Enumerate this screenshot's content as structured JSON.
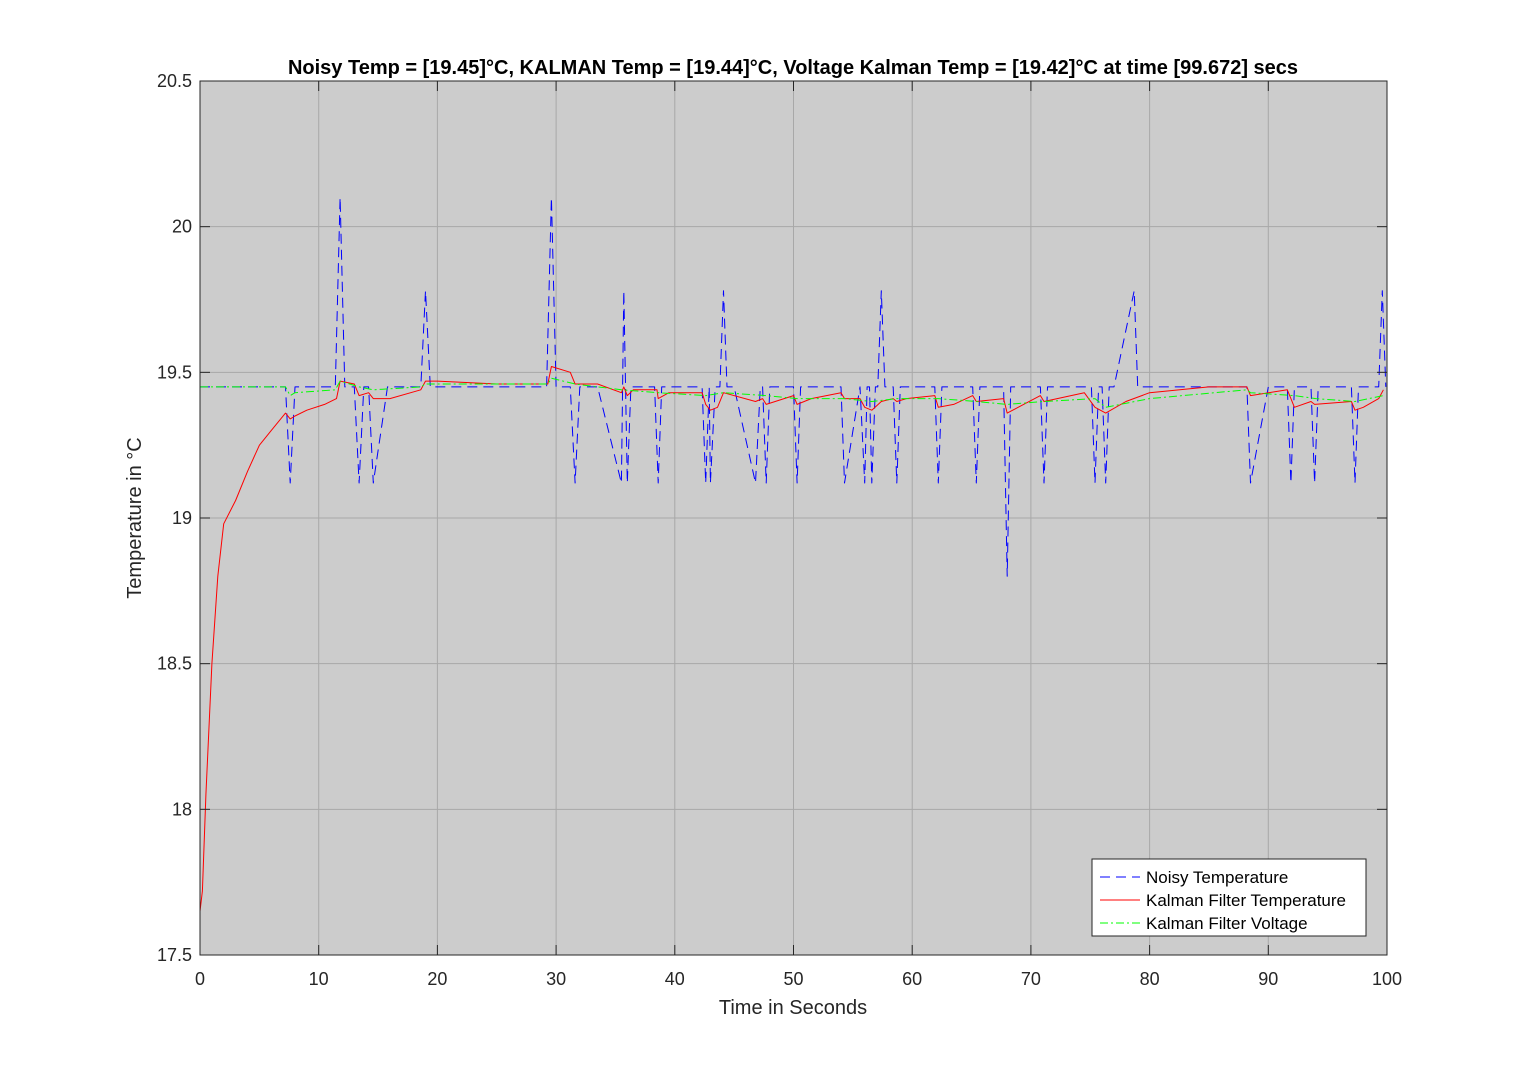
{
  "chart_data": {
    "type": "line",
    "title": "Noisy Temp = [19.45]°C, KALMAN Temp = [19.44]°C, Voltage Kalman Temp = [19.42]°C at time [99.672] secs",
    "xlabel": "Time in Seconds",
    "ylabel": "Temperature in °C",
    "xlim": [
      0,
      100
    ],
    "ylim": [
      17.5,
      20.5
    ],
    "xticks": [
      0,
      10,
      20,
      30,
      40,
      50,
      60,
      70,
      80,
      90,
      100
    ],
    "yticks": [
      17.5,
      18,
      18.5,
      19,
      19.5,
      20,
      20.5
    ],
    "xtick_labels": [
      "0",
      "10",
      "20",
      "30",
      "40",
      "50",
      "60",
      "70",
      "80",
      "90",
      "100"
    ],
    "ytick_labels": [
      "17.5",
      "18",
      "18.5",
      "19",
      "19.5",
      "20",
      "20.5"
    ],
    "grid": true,
    "legend_position": "bottom-right",
    "plot_background": "#cccccc",
    "series": [
      {
        "name": "Noisy Temperature",
        "color": "#0000ff",
        "style": "dashed",
        "points": [
          [
            0,
            19.45
          ],
          [
            7.2,
            19.45
          ],
          [
            7.6,
            19.12
          ],
          [
            8.0,
            19.45
          ],
          [
            11.4,
            19.45
          ],
          [
            11.8,
            20.1
          ],
          [
            12.2,
            19.45
          ],
          [
            13.0,
            19.45
          ],
          [
            13.4,
            19.12
          ],
          [
            13.8,
            19.45
          ],
          [
            14.2,
            19.45
          ],
          [
            14.6,
            19.12
          ],
          [
            15.8,
            19.45
          ],
          [
            18.6,
            19.45
          ],
          [
            19.0,
            19.78
          ],
          [
            19.4,
            19.45
          ],
          [
            29.2,
            19.45
          ],
          [
            29.6,
            20.1
          ],
          [
            30.0,
            19.45
          ],
          [
            31.2,
            19.45
          ],
          [
            31.6,
            19.12
          ],
          [
            32.0,
            19.45
          ],
          [
            33.5,
            19.45
          ],
          [
            35.5,
            19.12
          ],
          [
            35.7,
            19.78
          ],
          [
            36.0,
            19.12
          ],
          [
            36.3,
            19.45
          ],
          [
            38.3,
            19.45
          ],
          [
            38.6,
            19.12
          ],
          [
            38.9,
            19.45
          ],
          [
            42.3,
            19.45
          ],
          [
            42.6,
            19.12
          ],
          [
            42.9,
            19.45
          ],
          [
            43.0,
            19.12
          ],
          [
            43.4,
            19.45
          ],
          [
            43.8,
            19.45
          ],
          [
            44.1,
            19.78
          ],
          [
            44.4,
            19.45
          ],
          [
            45.0,
            19.45
          ],
          [
            46.8,
            19.12
          ],
          [
            47.2,
            19.45
          ],
          [
            47.4,
            19.45
          ],
          [
            47.7,
            19.12
          ],
          [
            48.0,
            19.45
          ],
          [
            50.0,
            19.45
          ],
          [
            50.3,
            19.12
          ],
          [
            50.6,
            19.45
          ],
          [
            54.0,
            19.45
          ],
          [
            54.3,
            19.12
          ],
          [
            55.6,
            19.45
          ],
          [
            56.0,
            19.12
          ],
          [
            56.2,
            19.45
          ],
          [
            56.4,
            19.45
          ],
          [
            56.6,
            19.12
          ],
          [
            56.9,
            19.45
          ],
          [
            57.1,
            19.45
          ],
          [
            57.4,
            19.78
          ],
          [
            57.7,
            19.45
          ],
          [
            58.4,
            19.45
          ],
          [
            58.7,
            19.12
          ],
          [
            59.0,
            19.45
          ],
          [
            61.9,
            19.45
          ],
          [
            62.2,
            19.12
          ],
          [
            62.5,
            19.45
          ],
          [
            65.1,
            19.45
          ],
          [
            65.4,
            19.12
          ],
          [
            65.7,
            19.45
          ],
          [
            67.7,
            19.45
          ],
          [
            68.0,
            18.8
          ],
          [
            68.3,
            19.45
          ],
          [
            70.8,
            19.45
          ],
          [
            71.1,
            19.12
          ],
          [
            71.4,
            19.45
          ],
          [
            75.1,
            19.45
          ],
          [
            75.4,
            19.12
          ],
          [
            75.7,
            19.45
          ],
          [
            76.0,
            19.45
          ],
          [
            76.3,
            19.12
          ],
          [
            76.6,
            19.45
          ],
          [
            77.0,
            19.45
          ],
          [
            78.7,
            19.78
          ],
          [
            79.0,
            19.45
          ],
          [
            88.2,
            19.45
          ],
          [
            88.5,
            19.12
          ],
          [
            90.0,
            19.45
          ],
          [
            91.6,
            19.45
          ],
          [
            91.9,
            19.12
          ],
          [
            92.2,
            19.45
          ],
          [
            93.6,
            19.45
          ],
          [
            93.9,
            19.12
          ],
          [
            94.2,
            19.45
          ],
          [
            97.0,
            19.45
          ],
          [
            97.3,
            19.12
          ],
          [
            97.6,
            19.45
          ],
          [
            99.3,
            19.45
          ],
          [
            99.6,
            19.78
          ],
          [
            99.9,
            19.45
          ]
        ]
      },
      {
        "name": "Kalman Filter Temperature",
        "color": "#ff0000",
        "style": "solid",
        "points": [
          [
            0,
            17.65
          ],
          [
            0.2,
            17.72
          ],
          [
            0.5,
            18.05
          ],
          [
            1.0,
            18.5
          ],
          [
            1.5,
            18.8
          ],
          [
            2.0,
            18.98
          ],
          [
            3.0,
            19.06
          ],
          [
            4.0,
            19.16
          ],
          [
            5.0,
            19.25
          ],
          [
            6.0,
            19.3
          ],
          [
            7.2,
            19.36
          ],
          [
            7.6,
            19.34
          ],
          [
            8.0,
            19.35
          ],
          [
            9.0,
            19.37
          ],
          [
            10.5,
            19.39
          ],
          [
            11.5,
            19.41
          ],
          [
            11.8,
            19.47
          ],
          [
            13.0,
            19.46
          ],
          [
            13.4,
            19.42
          ],
          [
            14.2,
            19.43
          ],
          [
            14.6,
            19.41
          ],
          [
            16.0,
            19.41
          ],
          [
            18.6,
            19.44
          ],
          [
            19.0,
            19.47
          ],
          [
            20.0,
            19.47
          ],
          [
            25.0,
            19.46
          ],
          [
            29.3,
            19.46
          ],
          [
            29.6,
            19.52
          ],
          [
            31.2,
            19.5
          ],
          [
            31.6,
            19.46
          ],
          [
            33.5,
            19.46
          ],
          [
            35.5,
            19.43
          ],
          [
            35.7,
            19.45
          ],
          [
            36.0,
            19.42
          ],
          [
            36.5,
            19.44
          ],
          [
            38.5,
            19.44
          ],
          [
            38.6,
            19.41
          ],
          [
            39.5,
            19.43
          ],
          [
            42.3,
            19.43
          ],
          [
            42.6,
            19.39
          ],
          [
            43.0,
            19.37
          ],
          [
            43.6,
            19.38
          ],
          [
            44.1,
            19.43
          ],
          [
            46.8,
            19.4
          ],
          [
            47.4,
            19.41
          ],
          [
            47.7,
            19.39
          ],
          [
            50.0,
            19.42
          ],
          [
            50.3,
            19.39
          ],
          [
            51.5,
            19.41
          ],
          [
            54.0,
            19.43
          ],
          [
            54.3,
            19.41
          ],
          [
            55.6,
            19.41
          ],
          [
            56.0,
            19.38
          ],
          [
            56.6,
            19.37
          ],
          [
            57.4,
            19.4
          ],
          [
            58.4,
            19.41
          ],
          [
            58.7,
            19.4
          ],
          [
            59.5,
            19.41
          ],
          [
            61.9,
            19.42
          ],
          [
            62.2,
            19.38
          ],
          [
            63.5,
            19.39
          ],
          [
            65.1,
            19.42
          ],
          [
            65.4,
            19.4
          ],
          [
            67.7,
            19.41
          ],
          [
            68.0,
            19.36
          ],
          [
            70.8,
            19.42
          ],
          [
            71.1,
            19.4
          ],
          [
            74.5,
            19.43
          ],
          [
            75.4,
            19.38
          ],
          [
            76.3,
            19.36
          ],
          [
            78.0,
            19.4
          ],
          [
            80.0,
            19.43
          ],
          [
            85.0,
            19.45
          ],
          [
            88.2,
            19.45
          ],
          [
            88.5,
            19.42
          ],
          [
            91.6,
            19.44
          ],
          [
            91.9,
            19.41
          ],
          [
            92.2,
            19.38
          ],
          [
            93.6,
            19.4
          ],
          [
            93.9,
            19.39
          ],
          [
            97.0,
            19.4
          ],
          [
            97.3,
            19.37
          ],
          [
            98.0,
            19.38
          ],
          [
            99.3,
            19.41
          ],
          [
            99.7,
            19.44
          ]
        ]
      },
      {
        "name": "Kalman Filter Voltage",
        "color": "#00ff00",
        "style": "dashdot",
        "points": [
          [
            0,
            19.45
          ],
          [
            7.2,
            19.45
          ],
          [
            7.6,
            19.42
          ],
          [
            8.0,
            19.43
          ],
          [
            11.4,
            19.44
          ],
          [
            11.8,
            19.47
          ],
          [
            13.4,
            19.45
          ],
          [
            14.6,
            19.44
          ],
          [
            18.6,
            19.45
          ],
          [
            19.0,
            19.46
          ],
          [
            29.3,
            19.46
          ],
          [
            29.6,
            19.48
          ],
          [
            31.6,
            19.46
          ],
          [
            35.5,
            19.44
          ],
          [
            38.6,
            19.43
          ],
          [
            42.6,
            19.42
          ],
          [
            44.1,
            19.43
          ],
          [
            47.7,
            19.42
          ],
          [
            50.3,
            19.41
          ],
          [
            54.3,
            19.41
          ],
          [
            56.6,
            19.4
          ],
          [
            58.7,
            19.41
          ],
          [
            62.2,
            19.41
          ],
          [
            65.4,
            19.4
          ],
          [
            68.0,
            19.39
          ],
          [
            71.1,
            19.4
          ],
          [
            75.4,
            19.41
          ],
          [
            76.3,
            19.38
          ],
          [
            80.0,
            19.41
          ],
          [
            88.2,
            19.44
          ],
          [
            88.5,
            19.43
          ],
          [
            92.2,
            19.42
          ],
          [
            94.0,
            19.41
          ],
          [
            97.3,
            19.4
          ],
          [
            99.7,
            19.42
          ]
        ]
      }
    ]
  }
}
